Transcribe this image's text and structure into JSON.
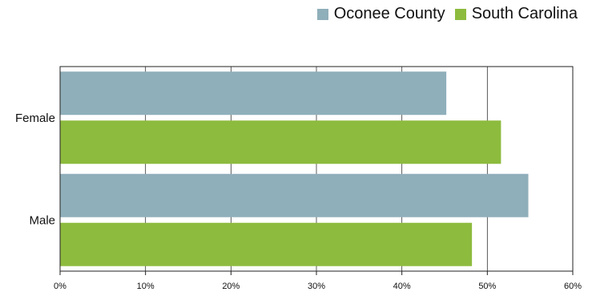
{
  "chart_data": {
    "type": "bar",
    "orientation": "horizontal",
    "categories": [
      "Female",
      "Male"
    ],
    "series": [
      {
        "name": "Oconee County",
        "values": [
          45.2,
          54.8
        ],
        "color": "#8fafba"
      },
      {
        "name": "South Carolina",
        "values": [
          51.6,
          48.2
        ],
        "color": "#8dbb3e"
      }
    ],
    "xlim": [
      0,
      60
    ],
    "xticks": [
      0,
      10,
      20,
      30,
      40,
      50,
      60
    ],
    "tick_suffix": "%",
    "grid": true,
    "legend_position": "top-right"
  }
}
